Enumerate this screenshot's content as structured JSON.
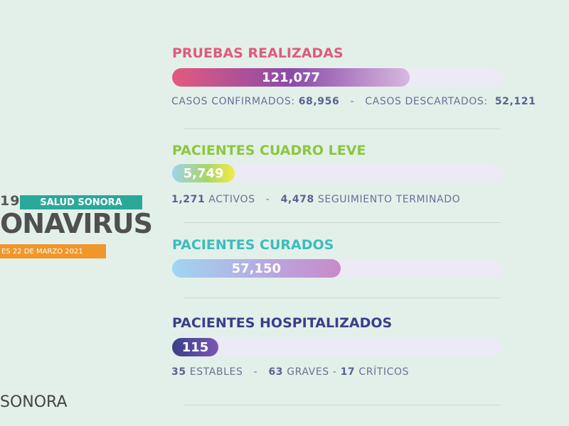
{
  "banner": {
    "covid_fragment": "19",
    "salud_sonora": "SALUD SONORA",
    "coronavirus_fragment": "ONAVIRUS",
    "date_fragment": "ES 22 DE MARZO 2021",
    "footer_fragment": "SONORA"
  },
  "colors": {
    "pruebas": "#e05a7e",
    "leve": "#8cc63f",
    "curados": "#3bbdbd",
    "hospitalizados": "#3a3f8a"
  },
  "pruebas": {
    "title": "PRUEBAS REALIZADAS",
    "value": "121,077",
    "fill_percent": 72,
    "confirmados_label": "CASOS CONFIRMADOS:",
    "confirmados_value": "68,956",
    "sep": "-",
    "descartados_label": "CASOS DESCARTADOS:",
    "descartados_value": "52,121"
  },
  "leve": {
    "title": "PACIENTES CUADRO LEVE",
    "value": "5,749",
    "fill_percent": 19,
    "activos_value": "1,271",
    "activos_label": "ACTIVOS",
    "sep": "-",
    "seguimiento_value": "4,478",
    "seguimiento_label": "SEGUIMIENTO TERMINADO"
  },
  "curados": {
    "title": "PACIENTES CURADOS",
    "value": "57,150",
    "fill_percent": 51
  },
  "hospitalizados": {
    "title": "PACIENTES HOSPITALIZADOS",
    "value": "115",
    "fill_percent": 14,
    "estables_value": "35",
    "estables_label": "ESTABLES",
    "sep": "-",
    "graves_value": "63",
    "graves_label": "GRAVES",
    "criticos_value": "17",
    "criticos_label": "CRÍTICOS"
  }
}
